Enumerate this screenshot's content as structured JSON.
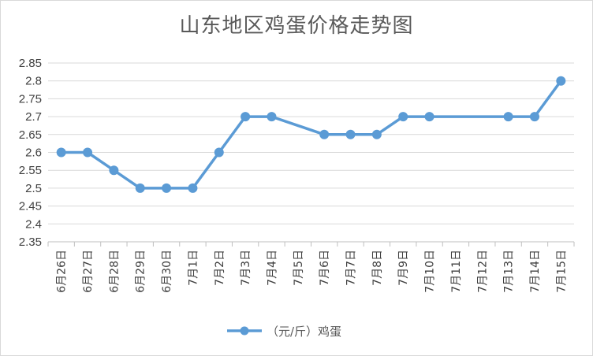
{
  "chart_data": {
    "type": "line",
    "title": "山东地区鸡蛋价格走势图",
    "categories": [
      "6月26日",
      "6月27日",
      "6月28日",
      "6月29日",
      "6月30日",
      "7月1日",
      "7月2日",
      "7月3日",
      "7月4日",
      "7月5日",
      "7月6日",
      "7月7日",
      "7月8日",
      "7月9日",
      "7月10日",
      "7月11日",
      "7月12日",
      "7月13日",
      "7月14日",
      "7月15日"
    ],
    "series": [
      {
        "name": "（元/斤）鸡蛋",
        "color": "#5b9bd5",
        "values": [
          2.6,
          2.6,
          2.55,
          2.5,
          2.5,
          2.5,
          2.6,
          2.7,
          2.7,
          null,
          2.65,
          2.65,
          2.65,
          2.7,
          2.7,
          null,
          null,
          2.7,
          2.7,
          2.8
        ]
      }
    ],
    "ylim": [
      2.35,
      2.85
    ],
    "ytick_step": 0.05,
    "ytick_labels": [
      "2.35",
      "2.4",
      "2.45",
      "2.5",
      "2.55",
      "2.6",
      "2.65",
      "2.7",
      "2.75",
      "2.8",
      "2.85"
    ],
    "grid": true,
    "legend": "bottom"
  }
}
